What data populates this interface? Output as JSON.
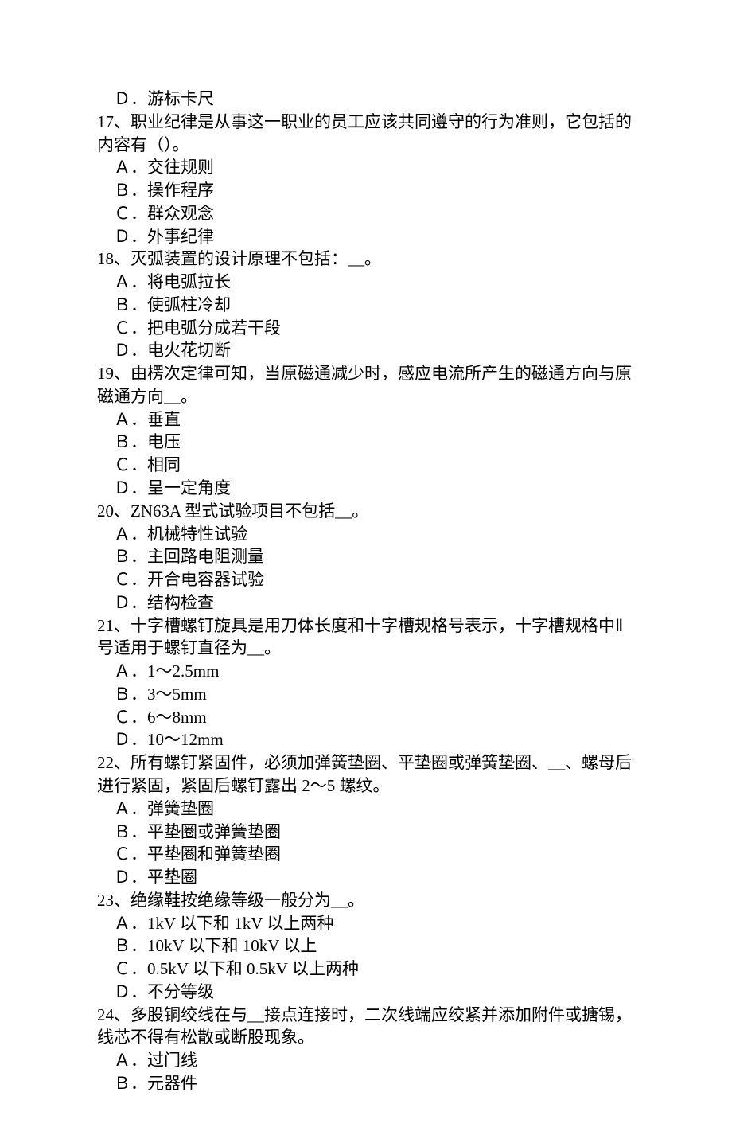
{
  "q16": {
    "optD": "Ｄ．游标卡尺"
  },
  "q17": {
    "stem": "17、职业纪律是从事这一职业的员工应该共同遵守的行为准则，它包括的内容有（）。",
    "optA": "Ａ．交往规则",
    "optB": "Ｂ．操作程序",
    "optC": "Ｃ．群众观念",
    "optD": "Ｄ．外事纪律"
  },
  "q18": {
    "stem": "18、灭弧装置的设计原理不包括：__。",
    "optA": "Ａ．将电弧拉长",
    "optB": "Ｂ．使弧柱冷却",
    "optC": "Ｃ．把电弧分成若干段",
    "optD": "Ｄ．电火花切断"
  },
  "q19": {
    "stem": "19、由楞次定律可知，当原磁通减少时，感应电流所产生的磁通方向与原磁通方向__。",
    "optA": "Ａ．垂直",
    "optB": "Ｂ．电压",
    "optC": "Ｃ．相同",
    "optD": "Ｄ．呈一定角度"
  },
  "q20": {
    "stem": "20、ZN63A 型式试验项目不包括__。",
    "optA": "Ａ．机械特性试验",
    "optB": "Ｂ．主回路电阻测量",
    "optC": "Ｃ．开合电容器试验",
    "optD": "Ｄ．结构检查"
  },
  "q21": {
    "stem": "21、十字槽螺钉旋具是用刀体长度和十字槽规格号表示，十字槽规格中Ⅱ号适用于螺钉直径为__。",
    "optA": "Ａ．1～2.5mm",
    "optB": "Ｂ．3～5mm",
    "optC": "Ｃ．6～8mm",
    "optD": "Ｄ．10～12mm"
  },
  "q22": {
    "stem": "22、所有螺钉紧固件，必须加弹簧垫圈、平垫圈或弹簧垫圈、__、螺母后进行紧固，紧固后螺钉露出 2～5 螺纹。",
    "optA": "Ａ．弹簧垫圈",
    "optB": "Ｂ．平垫圈或弹簧垫圈",
    "optC": "Ｃ．平垫圈和弹簧垫圈",
    "optD": "Ｄ．平垫圈"
  },
  "q23": {
    "stem": "23、绝缘鞋按绝缘等级一般分为__。",
    "optA": "Ａ．1kV 以下和 1kV 以上两种",
    "optB": "Ｂ．10kV 以下和 10kV 以上",
    "optC": "Ｃ．0.5kV 以下和 0.5kV 以上两种",
    "optD": "Ｄ．不分等级"
  },
  "q24": {
    "stem": "24、多股铜绞线在与__接点连接时，二次线端应绞紧并添加附件或搪锡，线芯不得有松散或断股现象。",
    "optA": "Ａ．过门线",
    "optB": "Ｂ．元器件"
  }
}
